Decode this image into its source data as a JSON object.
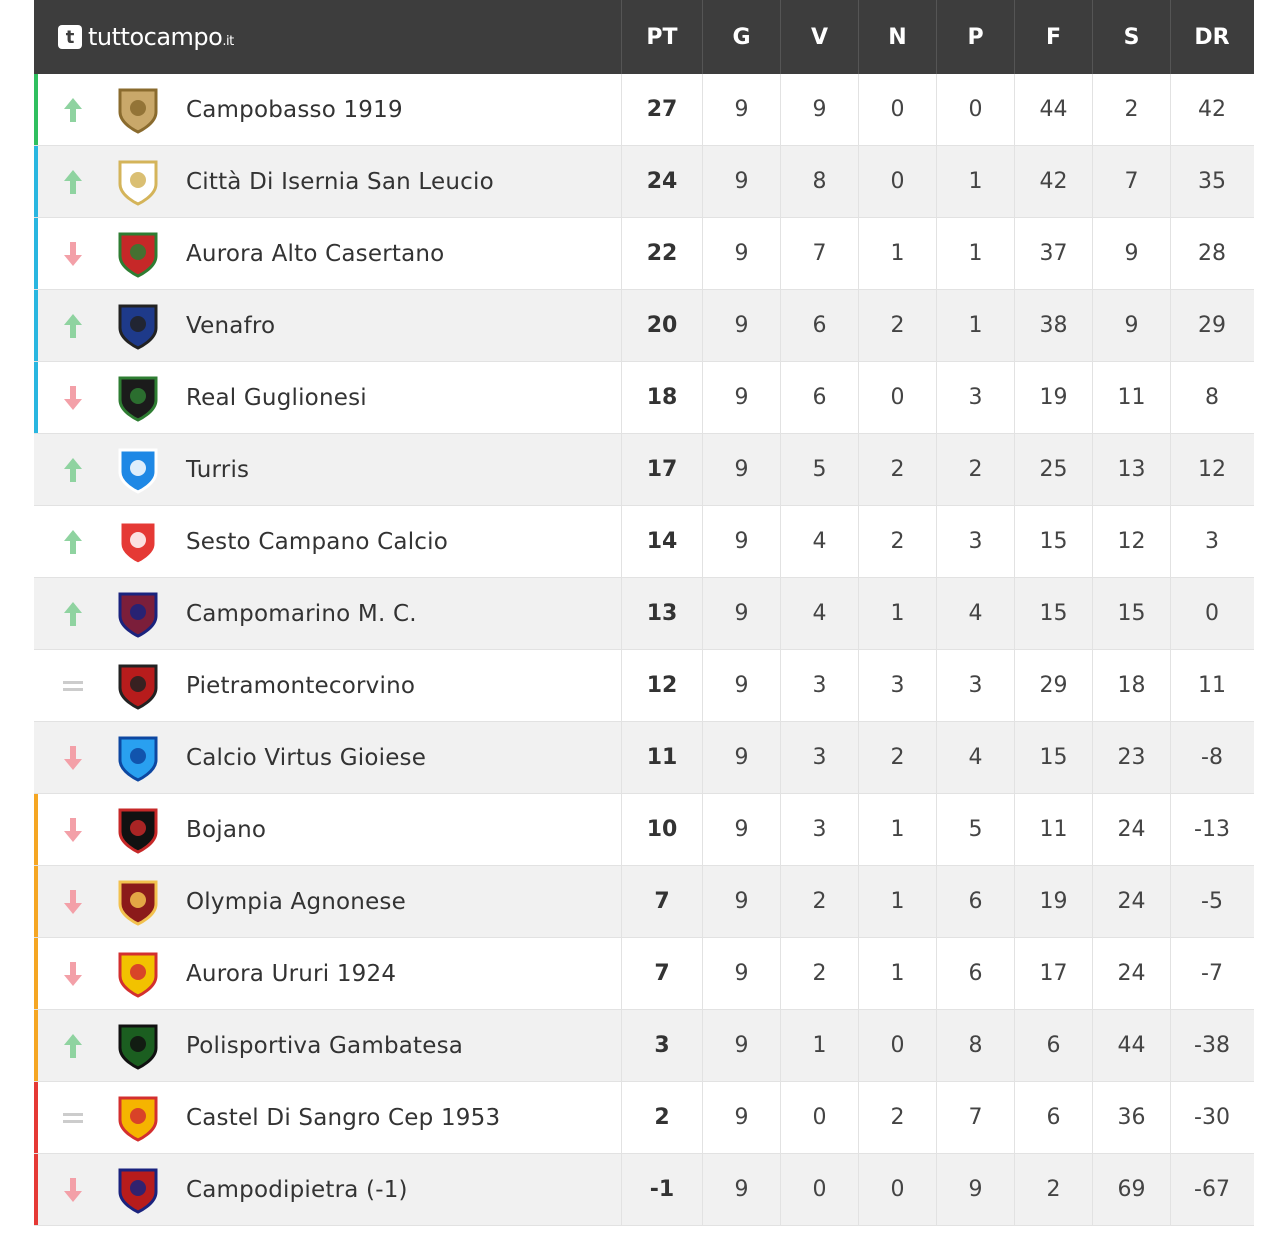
{
  "brand": {
    "name": "tuttocampo",
    "tld": ".it",
    "logo_letter": "t"
  },
  "columns": [
    "PT",
    "G",
    "V",
    "N",
    "P",
    "F",
    "S",
    "DR"
  ],
  "colors": {
    "promotion": "#2fbf5f",
    "playoff": "#29b6e0",
    "playout": "#f5a623",
    "relegation": "#e53935",
    "up": "#8fd3a0",
    "down": "#f3a0a8",
    "same": "#cccccc"
  },
  "rows": [
    {
      "trend": "up",
      "zone": "promotion",
      "crest": "campobasso-crest",
      "name": "Campobasso 1919",
      "pt": "27",
      "g": "9",
      "v": "9",
      "n": "0",
      "p": "0",
      "f": "44",
      "s": "2",
      "dr": "42"
    },
    {
      "trend": "up",
      "zone": "playoff",
      "crest": "isernia-crest",
      "name": "Città Di Isernia San Leucio",
      "pt": "24",
      "g": "9",
      "v": "8",
      "n": "0",
      "p": "1",
      "f": "42",
      "s": "7",
      "dr": "35"
    },
    {
      "trend": "down",
      "zone": "playoff",
      "crest": "aurora-alto-casertano-crest",
      "name": "Aurora Alto Casertano",
      "pt": "22",
      "g": "9",
      "v": "7",
      "n": "1",
      "p": "1",
      "f": "37",
      "s": "9",
      "dr": "28"
    },
    {
      "trend": "up",
      "zone": "playoff",
      "crest": "venafro-crest",
      "name": "Venafro",
      "pt": "20",
      "g": "9",
      "v": "6",
      "n": "2",
      "p": "1",
      "f": "38",
      "s": "9",
      "dr": "29"
    },
    {
      "trend": "down",
      "zone": "playoff",
      "crest": "real-guglionesi-crest",
      "name": "Real Guglionesi",
      "pt": "18",
      "g": "9",
      "v": "6",
      "n": "0",
      "p": "3",
      "f": "19",
      "s": "11",
      "dr": "8"
    },
    {
      "trend": "up",
      "zone": "none",
      "crest": "turris-crest",
      "name": "Turris",
      "pt": "17",
      "g": "9",
      "v": "5",
      "n": "2",
      "p": "2",
      "f": "25",
      "s": "13",
      "dr": "12"
    },
    {
      "trend": "up",
      "zone": "none",
      "crest": "sesto-campano-crest",
      "name": "Sesto Campano Calcio",
      "pt": "14",
      "g": "9",
      "v": "4",
      "n": "2",
      "p": "3",
      "f": "15",
      "s": "12",
      "dr": "3"
    },
    {
      "trend": "up",
      "zone": "none",
      "crest": "campomarino-crest",
      "name": "Campomarino M. C.",
      "pt": "13",
      "g": "9",
      "v": "4",
      "n": "1",
      "p": "4",
      "f": "15",
      "s": "15",
      "dr": "0"
    },
    {
      "trend": "same",
      "zone": "none",
      "crest": "pietramontecorvino-crest",
      "name": "Pietramontecorvino",
      "pt": "12",
      "g": "9",
      "v": "3",
      "n": "3",
      "p": "3",
      "f": "29",
      "s": "18",
      "dr": "11"
    },
    {
      "trend": "down",
      "zone": "none",
      "crest": "virtus-gioiese-crest",
      "name": "Calcio Virtus Gioiese",
      "pt": "11",
      "g": "9",
      "v": "3",
      "n": "2",
      "p": "4",
      "f": "15",
      "s": "23",
      "dr": "-8"
    },
    {
      "trend": "down",
      "zone": "playout",
      "crest": "bojano-crest",
      "name": "Bojano",
      "pt": "10",
      "g": "9",
      "v": "3",
      "n": "1",
      "p": "5",
      "f": "11",
      "s": "24",
      "dr": "-13"
    },
    {
      "trend": "down",
      "zone": "playout",
      "crest": "olympia-agnonese-crest",
      "name": "Olympia Agnonese",
      "pt": "7",
      "g": "9",
      "v": "2",
      "n": "1",
      "p": "6",
      "f": "19",
      "s": "24",
      "dr": "-5"
    },
    {
      "trend": "down",
      "zone": "playout",
      "crest": "aurora-ururi-crest",
      "name": "Aurora Ururi 1924",
      "pt": "7",
      "g": "9",
      "v": "2",
      "n": "1",
      "p": "6",
      "f": "17",
      "s": "24",
      "dr": "-7"
    },
    {
      "trend": "up",
      "zone": "playout",
      "crest": "gambatesa-crest",
      "name": "Polisportiva Gambatesa",
      "pt": "3",
      "g": "9",
      "v": "1",
      "n": "0",
      "p": "8",
      "f": "6",
      "s": "44",
      "dr": "-38"
    },
    {
      "trend": "same",
      "zone": "relegation",
      "crest": "castel-di-sangro-crest",
      "name": "Castel Di Sangro Cep 1953",
      "pt": "2",
      "g": "9",
      "v": "0",
      "n": "2",
      "p": "7",
      "f": "6",
      "s": "36",
      "dr": "-30"
    },
    {
      "trend": "down",
      "zone": "relegation",
      "crest": "campodipietra-crest",
      "name": "Campodipietra (-1)",
      "pt": "-1",
      "g": "9",
      "v": "0",
      "n": "0",
      "p": "9",
      "f": "2",
      "s": "69",
      "dr": "-67"
    }
  ]
}
